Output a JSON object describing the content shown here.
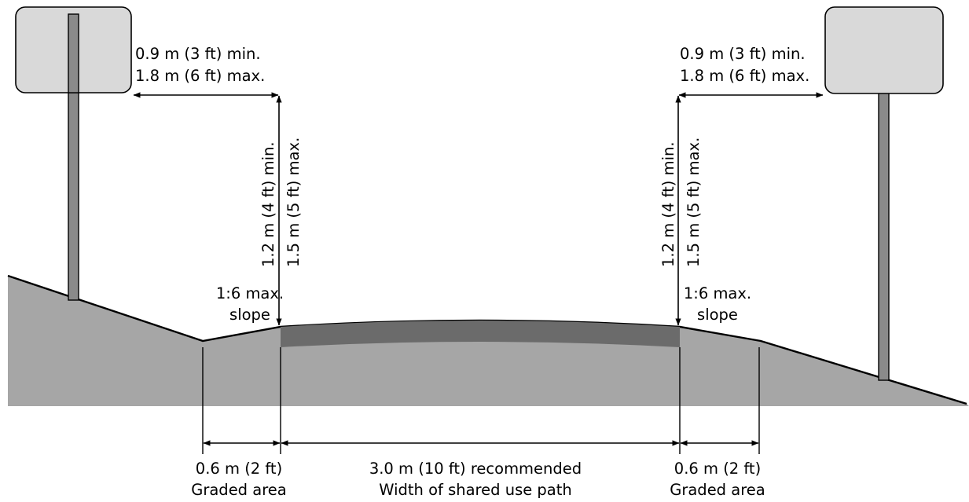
{
  "colors": {
    "ground": "#a6a6a6",
    "pavement": "#6b6b6b",
    "sign_fill": "#d9d9d9",
    "post": "#8a8a8a",
    "line": "#000000"
  },
  "left_sign": {
    "clearance_line1": "0.9 m (3 ft) min.",
    "clearance_line2": "1.8 m (6 ft) max.",
    "height_min": "1.2 m (4 ft) min.",
    "height_max": "1.5 m (5 ft) max.",
    "slope_line1": "1:6 max.",
    "slope_line2": "slope"
  },
  "right_sign": {
    "clearance_line1": "0.9 m (3 ft) min.",
    "clearance_line2": "1.8 m (6 ft) max.",
    "height_min": "1.2 m (4 ft) min.",
    "height_max": "1.5 m (5 ft) max.",
    "slope_line1": "1:6 max.",
    "slope_line2": "slope"
  },
  "bottom": {
    "left_graded_value": "0.6 m (2 ft)",
    "left_graded_label": "Graded area",
    "path_value": "3.0 m (10 ft) recommended",
    "path_label": "Width of shared use path",
    "right_graded_value": "0.6 m (2 ft)",
    "right_graded_label": "Graded area"
  }
}
